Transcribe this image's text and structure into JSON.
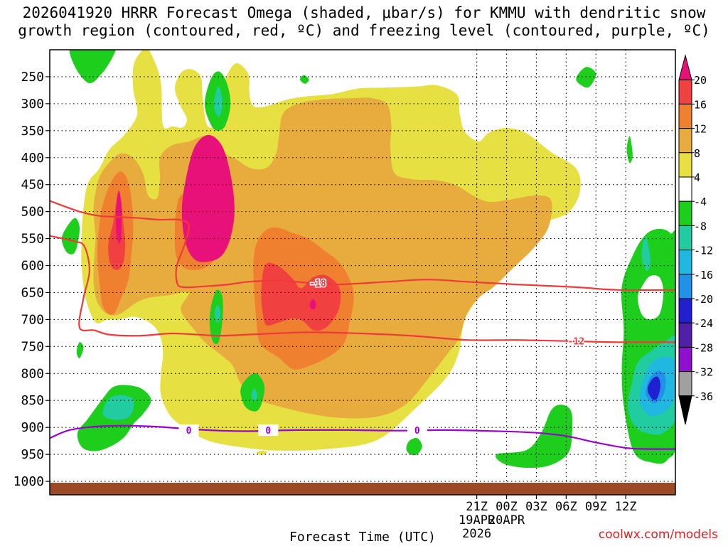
{
  "title": {
    "line1": "2026041920 HRRR Forecast Omega (shaded, μbar/s) for KMMU with dendritic snow",
    "line2": "growth region (contoured, red, ºC) and freezing level (contoured, purple, ºC)"
  },
  "credit": "coolwx.com/models",
  "chart_data": {
    "type": "heatmap",
    "title": "2026041920 HRRR Forecast Omega (shaded, μbar/s) for KMMU with dendritic snow growth region (contoured, red, ºC) and freezing level (contoured, purple, ºC)",
    "xlabel": "Forecast Time (UTC)",
    "ylabel": "",
    "x_range_hours": [
      -22,
      41
    ],
    "y_range_hPa": [
      200,
      1025
    ],
    "y_ticks": [
      "250",
      "300",
      "350",
      "400",
      "450",
      "500",
      "550",
      "600",
      "650",
      "700",
      "750",
      "800",
      "850",
      "900",
      "950",
      "1000"
    ],
    "x_ticks": [
      {
        "label": "21Z",
        "date": "19APR",
        "year": "2026",
        "hour": 21
      },
      {
        "label": "00Z",
        "date": "20APR",
        "year": "",
        "hour": 24
      },
      {
        "label": "03Z",
        "date": "",
        "year": "",
        "hour": 27
      },
      {
        "label": "06Z",
        "date": "",
        "year": "",
        "hour": 30
      },
      {
        "label": "09Z",
        "date": "",
        "year": "",
        "hour": 33
      },
      {
        "label": "12Z",
        "date": "",
        "year": "",
        "hour": 36
      }
    ],
    "colorbar": {
      "labels": [
        "20",
        "16",
        "12",
        "8",
        "4",
        "-4",
        "-8",
        "-12",
        "-16",
        "-20",
        "-24",
        "-28",
        "-32",
        "-36"
      ],
      "colors": [
        "#e8117a",
        "#f04040",
        "#ee8030",
        "#e7ac3d",
        "#e6e042",
        "#ffffff",
        "#1dce1d",
        "#20cca0",
        "#20b8e0",
        "#2090e8",
        "#2020d0",
        "#5020a8",
        "#9010d0",
        "#a0a0a0",
        "#000000"
      ]
    },
    "fill_levels": {
      "yellow_4_8": "#e6e042",
      "gold_8_12": "#e7ac3d",
      "orange_12_16": "#ee8030",
      "red_16_20": "#f04040",
      "magenta_gt20": "#e8117a",
      "green_m4_m8": "#1dce1d",
      "teal_m8_m12": "#20cca0",
      "cyan_m12_m16": "#20b8e0",
      "blue_m16_m20": "#2090e8",
      "navy_m20_m24": "#2020d0"
    },
    "contours": [
      {
        "name": "dendritic -12C",
        "label": "-12",
        "color": "#f03a3a",
        "points": [
          [
            -22,
            545
          ],
          [
            -19.5,
            555
          ],
          [
            -18.5,
            565
          ],
          [
            -18,
            610
          ],
          [
            -18.6,
            660
          ],
          [
            -19,
            715
          ],
          [
            -17.5,
            720
          ],
          [
            -16,
            728
          ],
          [
            -13,
            730
          ],
          [
            -10,
            726
          ],
          [
            -8,
            727
          ],
          [
            -5,
            730
          ],
          [
            -2,
            728
          ],
          [
            3,
            724
          ],
          [
            6,
            724
          ],
          [
            11,
            727
          ],
          [
            15,
            731
          ],
          [
            20,
            738
          ],
          [
            25,
            738
          ],
          [
            30,
            740
          ],
          [
            35,
            742
          ],
          [
            41,
            742
          ]
        ],
        "label_hour": 31,
        "label_hPa": 740
      },
      {
        "name": "dendritic -18C",
        "label": "-18",
        "color": "#f03a3a",
        "points": [
          [
            -22,
            480
          ],
          [
            -19,
            500
          ],
          [
            -17,
            508
          ],
          [
            -15,
            510
          ],
          [
            -13,
            512
          ],
          [
            -11,
            515
          ],
          [
            -9,
            515
          ],
          [
            -8,
            525
          ],
          [
            -8.4,
            560
          ],
          [
            -9.2,
            600
          ],
          [
            -9.2,
            630
          ],
          [
            -8.6,
            640
          ],
          [
            -6,
            638
          ],
          [
            -4,
            635
          ],
          [
            -2,
            630
          ],
          [
            1,
            628
          ],
          [
            4,
            632
          ],
          [
            7,
            635
          ],
          [
            12,
            630
          ],
          [
            16,
            626
          ],
          [
            20,
            630
          ],
          [
            25,
            635
          ],
          [
            31,
            640
          ],
          [
            35,
            645
          ],
          [
            41,
            645
          ]
        ],
        "label_hour": 5,
        "label_hPa": 632
      },
      {
        "name": "freezing level 0C",
        "label": "0",
        "color": "#9a00d0",
        "points": [
          [
            -22,
            920
          ],
          [
            -20,
            905
          ],
          [
            -17,
            898
          ],
          [
            -14,
            897
          ],
          [
            -11,
            899
          ],
          [
            -8,
            903
          ],
          [
            -5,
            906
          ],
          [
            -2,
            907
          ],
          [
            3,
            905
          ],
          [
            8,
            905
          ],
          [
            13,
            906
          ],
          [
            18,
            905
          ],
          [
            23,
            907
          ],
          [
            27,
            910
          ],
          [
            30,
            916
          ],
          [
            33,
            928
          ],
          [
            36,
            938
          ],
          [
            38,
            940
          ],
          [
            41,
            940
          ]
        ],
        "label_positions": [
          [
            -8,
            905
          ],
          [
            0,
            905
          ],
          [
            15,
            905
          ]
        ]
      }
    ]
  }
}
